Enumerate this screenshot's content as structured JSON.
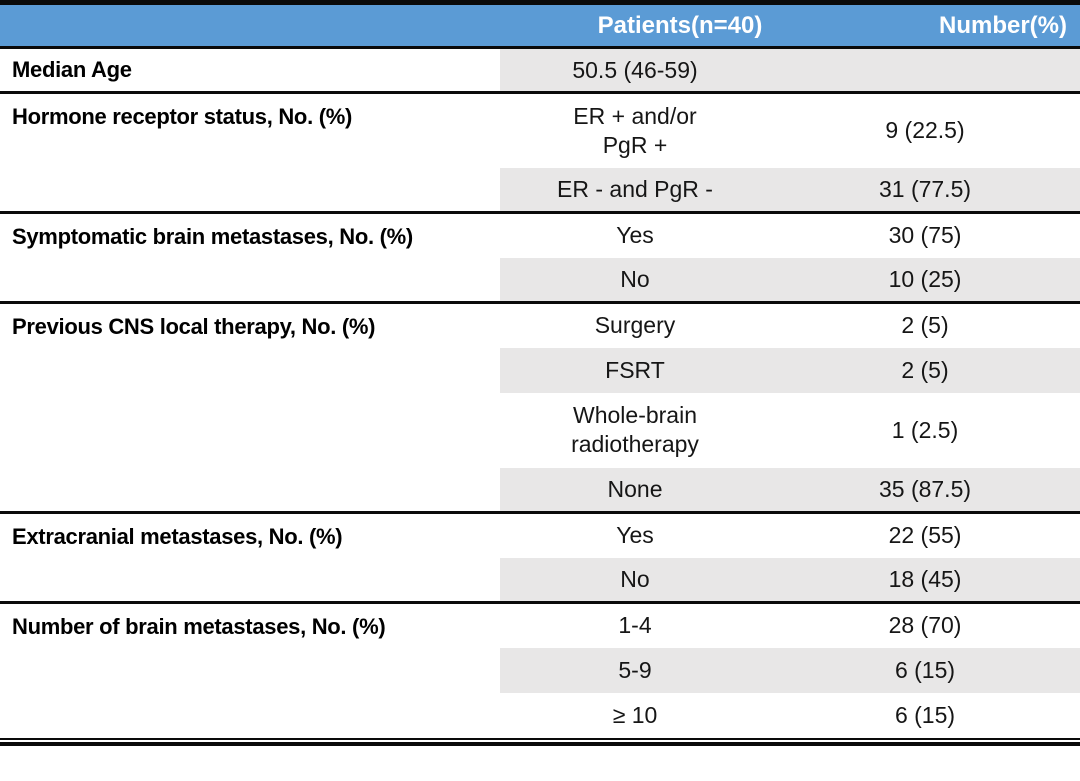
{
  "colors": {
    "header_bg": "#5B9BD5",
    "header_text": "#FFFFFF",
    "alt_row_bg": "#E8E7E7",
    "border": "#0A0A0A"
  },
  "table": {
    "header": {
      "patients": "Patients(n=40)",
      "number": "Number(%)"
    },
    "median": {
      "label": "Median Age",
      "value": "50.5 (46-59)",
      "number": ""
    },
    "groups": [
      {
        "label": "Hormone receptor status, No. (%)",
        "rows": [
          {
            "value": "ER + and/or\nPgR +",
            "number": "9 (22.5)"
          },
          {
            "value": "ER - and PgR -",
            "number": "31 (77.5)"
          }
        ]
      },
      {
        "label": "Symptomatic brain metastases, No. (%)",
        "rows": [
          {
            "value": "Yes",
            "number": "30 (75)"
          },
          {
            "value": "No",
            "number": "10 (25)"
          }
        ]
      },
      {
        "label": "Previous CNS local therapy, No. (%)",
        "rows": [
          {
            "value": "Surgery",
            "number": "2 (5)"
          },
          {
            "value": "FSRT",
            "number": "2 (5)"
          },
          {
            "value": "Whole-brain\nradiotherapy",
            "number": "1 (2.5)"
          },
          {
            "value": "None",
            "number": "35 (87.5)"
          }
        ]
      },
      {
        "label": "Extracranial metastases, No. (%)",
        "rows": [
          {
            "value": "Yes",
            "number": "22 (55)"
          },
          {
            "value": "No",
            "number": "18 (45)"
          }
        ]
      },
      {
        "label": "Number of brain metastases, No. (%)",
        "rows": [
          {
            "value": "1-4",
            "number": "28 (70)"
          },
          {
            "value": "5-9",
            "number": "6 (15)"
          },
          {
            "value": "≥ 10",
            "number": "6 (15)"
          }
        ]
      }
    ]
  }
}
